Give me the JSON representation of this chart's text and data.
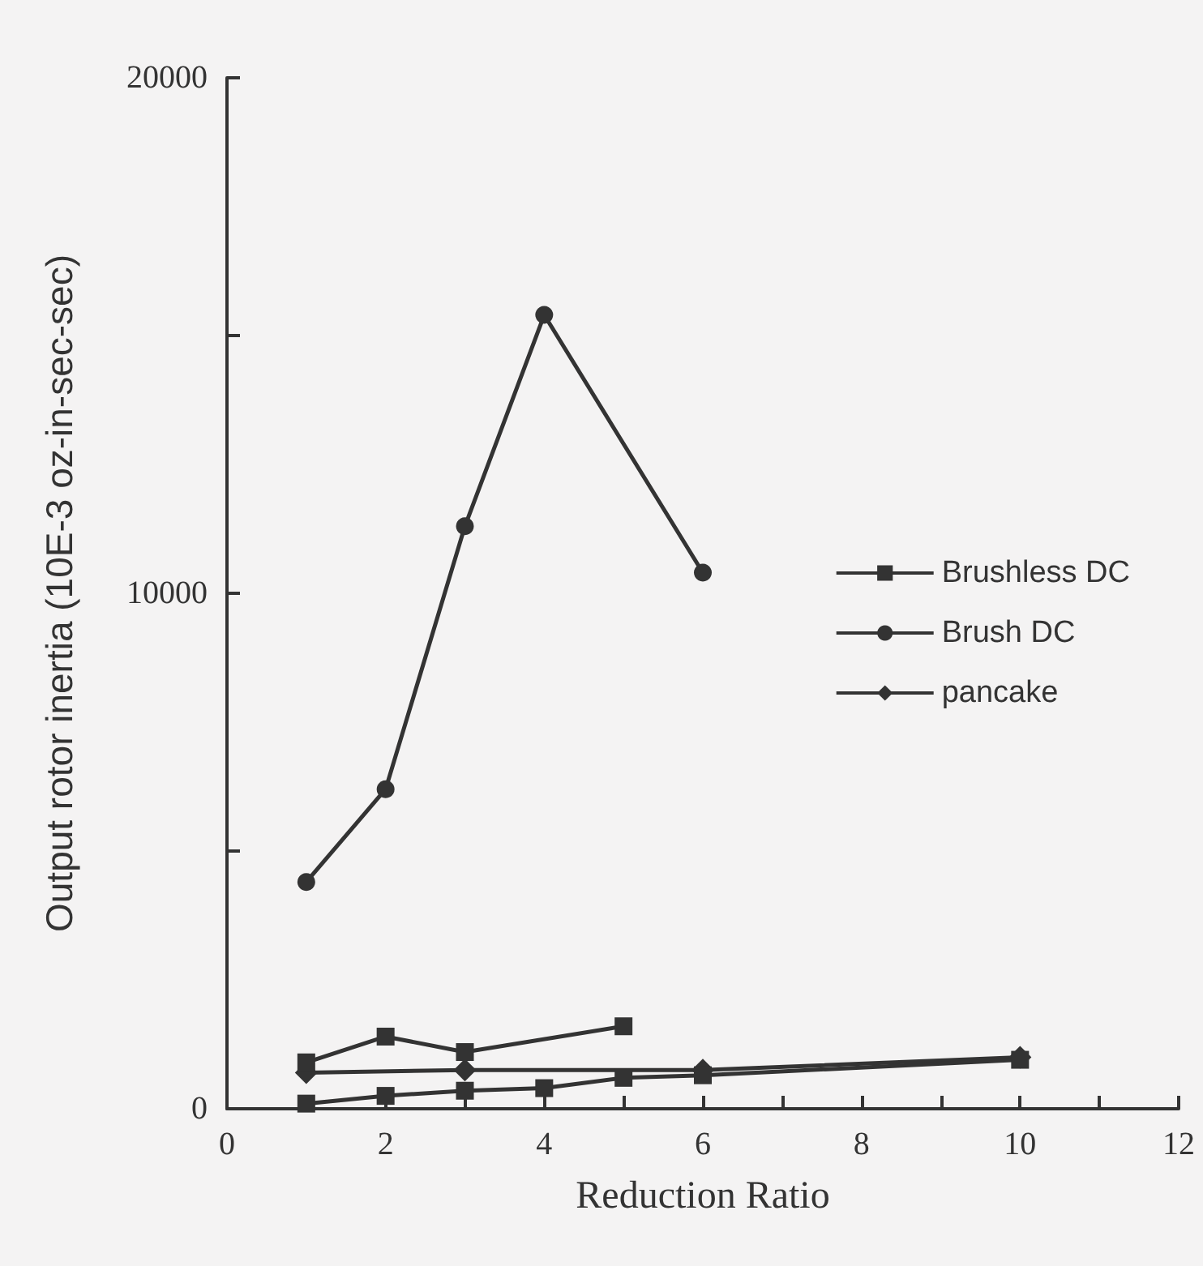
{
  "chart_data": {
    "type": "line",
    "xlabel": "Reduction Ratio",
    "ylabel": "Output rotor inertia (10E-3 oz-in-sec-sec)",
    "xlim": [
      0,
      12
    ],
    "xticks": [
      0,
      {
        "value": 1,
        "label": null
      },
      2,
      {
        "value": 3,
        "label": null
      },
      4,
      {
        "value": 5,
        "label": null
      },
      6,
      {
        "value": 7,
        "label": null
      },
      8,
      {
        "value": 9,
        "label": null
      },
      10,
      {
        "value": 11,
        "label": null
      },
      12
    ],
    "ylim": [
      0,
      20000
    ],
    "yticks": [
      0,
      {
        "value": 5000,
        "label": null
      },
      10000,
      {
        "value": 15000,
        "label": null
      },
      20000
    ],
    "grid": false,
    "legend": "right",
    "line_style": "solid",
    "series": [
      {
        "name": "Brushless DC",
        "color": "#333333",
        "marker": "square",
        "x": [
          1,
          2,
          3,
          4,
          5,
          6,
          10
        ],
        "values": [
          100,
          250,
          350,
          400,
          600,
          650,
          950
        ]
      },
      {
        "name": "Brush DC",
        "color": "#333333",
        "marker": "circle",
        "x": [
          1,
          2,
          3,
          4,
          6
        ],
        "values": [
          4400,
          6200,
          11300,
          15400,
          10400
        ]
      },
      {
        "color": "#333333",
        "marker": "square",
        "x": [
          1,
          2,
          3,
          5
        ],
        "values": [
          900,
          1400,
          1100,
          1600
        ]
      },
      {
        "name": "pancake",
        "color": "#333333",
        "marker": "diamond",
        "x": [
          1,
          3,
          6,
          10
        ],
        "values": [
          700,
          750,
          750,
          1000
        ]
      }
    ]
  }
}
